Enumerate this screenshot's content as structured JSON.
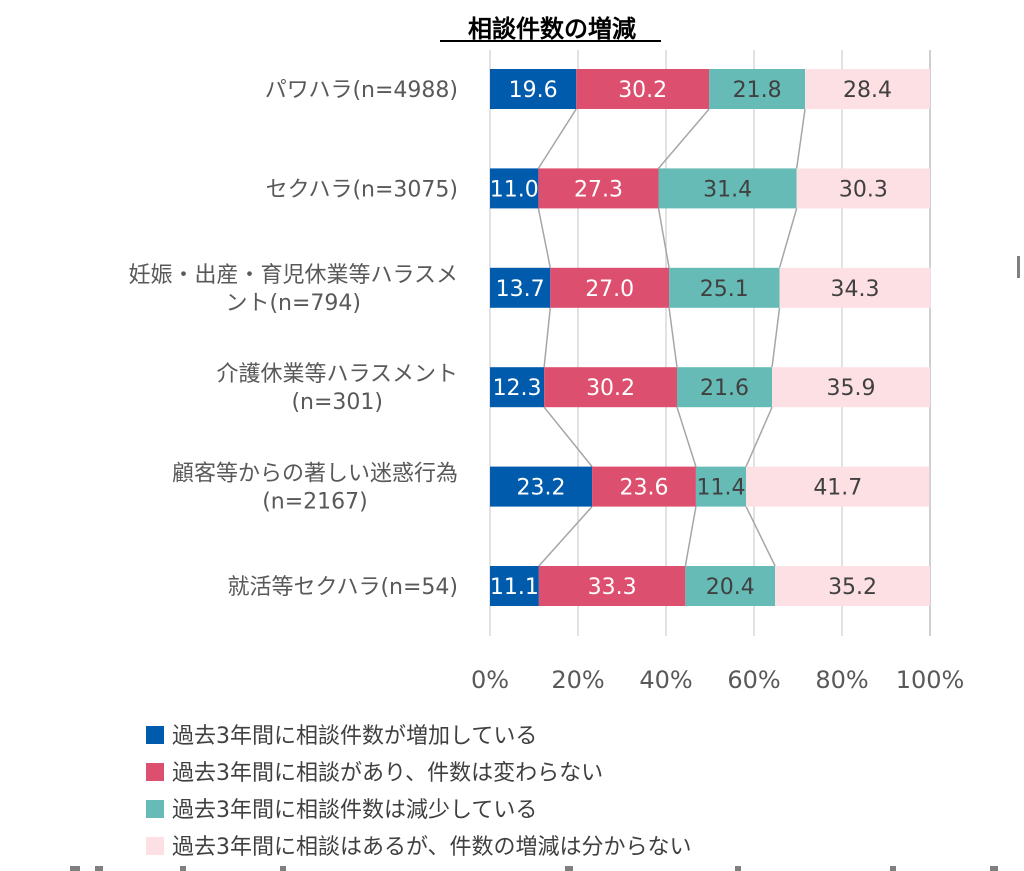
{
  "chart_data": {
    "type": "bar",
    "orientation": "horizontal",
    "stacked": "percent",
    "title": "相談件数の増減",
    "xlabel": "",
    "ylabel": "",
    "xlim": [
      0,
      100
    ],
    "x_ticks": [
      "0%",
      "20%",
      "40%",
      "60%",
      "80%",
      "100%"
    ],
    "grid": true,
    "series_lines": true,
    "legend_position": "bottom",
    "categories": [
      [
        "パワハラ(n=4988)"
      ],
      [
        "セクハラ(n=3075)"
      ],
      [
        "妊娠・出産・育児休業等ハラスメ",
        "ント(n=794)"
      ],
      [
        "介護休業等ハラスメント",
        "(n=301)"
      ],
      [
        "顧客等からの著しい迷惑行為",
        "(n=2167)"
      ],
      [
        "就活等セクハラ(n=54)"
      ]
    ],
    "series": [
      {
        "name": "過去3年間に相談件数が増加している",
        "color": "#005BAC",
        "label_color": "#FFFFFF",
        "values": [
          19.6,
          11.0,
          13.7,
          12.3,
          23.2,
          11.1
        ]
      },
      {
        "name": "過去3年間に相談があり、件数は変わらない",
        "color": "#DD4F6E",
        "label_color": "#FFFFFF",
        "values": [
          30.2,
          27.3,
          27.0,
          30.2,
          23.6,
          33.3
        ]
      },
      {
        "name": "過去3年間に相談件数は減少している",
        "color": "#66BBB6",
        "label_color": "#404040",
        "values": [
          21.8,
          31.4,
          25.1,
          21.6,
          11.4,
          20.4
        ]
      },
      {
        "name": "過去3年間に相談はあるが、件数の増減は分からない",
        "color": "#FCE0E4",
        "label_color": "#404040",
        "values": [
          28.4,
          30.3,
          34.3,
          35.9,
          41.7,
          35.2
        ]
      }
    ]
  }
}
